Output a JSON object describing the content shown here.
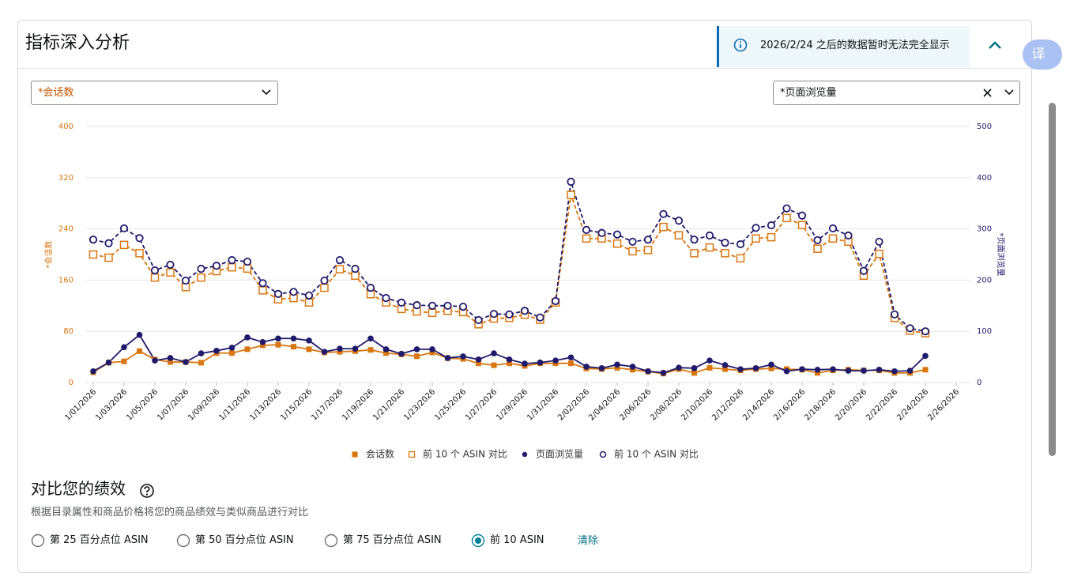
{
  "header": {
    "title": "指标深入分析"
  },
  "notice": {
    "text": "2026/2/24 之后的数据暂时无法完全显示"
  },
  "translate_button": {
    "label": "译"
  },
  "dropdowns": [
    {
      "label": "*会话数"
    },
    {
      "label": "*页面浏览量"
    }
  ],
  "chart_data": {
    "type": "line",
    "categories": [
      "1/01/2026",
      null,
      "1/03/2026",
      null,
      "1/05/2026",
      null,
      "1/07/2026",
      null,
      "1/09/2026",
      null,
      "1/11/2026",
      null,
      "1/13/2026",
      null,
      "1/15/2026",
      null,
      "1/17/2026",
      null,
      "1/19/2026",
      null,
      "1/21/2026",
      null,
      "1/23/2026",
      null,
      "1/25/2026",
      null,
      "1/27/2026",
      null,
      "1/29/2026",
      null,
      "1/31/2026",
      null,
      "2/02/2026",
      null,
      "2/04/2026",
      null,
      "2/06/2026",
      null,
      "2/08/2026",
      null,
      "2/10/2026",
      null,
      "2/12/2026",
      null,
      "2/14/2026",
      null,
      "2/16/2026",
      null,
      "2/18/2026",
      null,
      "2/20/2026",
      null,
      "2/22/2026",
      null,
      "2/24/2026",
      null,
      "2/26/2026"
    ],
    "ylabel": "*会话数",
    "y2label": "*页面浏览量",
    "ylim": [
      0,
      400
    ],
    "yticks": [
      0,
      80,
      160,
      240,
      320,
      400
    ],
    "y2lim": [
      0,
      500
    ],
    "y2ticks": [
      0,
      100,
      200,
      300,
      400,
      500
    ],
    "grid": true,
    "legend": "bottom",
    "series": [
      {
        "name": "会话数",
        "color": "#d9760f",
        "axis": "y",
        "marker": "square",
        "filled": true,
        "dashed": false,
        "values": [
          16,
          31,
          33,
          49,
          36,
          32,
          32,
          31,
          46,
          46,
          52,
          58,
          59,
          56,
          52,
          47,
          48,
          49,
          51,
          46,
          44,
          41,
          47,
          38,
          37,
          30,
          27,
          30,
          26,
          30,
          30,
          30,
          22,
          21,
          23,
          20,
          17,
          14,
          21,
          15,
          23,
          21,
          19,
          21,
          22,
          21,
          20,
          15,
          19,
          20,
          19,
          19,
          15,
          15,
          20,
          null,
          null
        ]
      },
      {
        "name": "前 10 个 ASIN 对比",
        "color": "#d9760f",
        "axis": "y",
        "marker": "square",
        "filled": false,
        "dashed": true,
        "values": [
          200,
          195,
          215,
          202,
          164,
          172,
          149,
          164,
          174,
          180,
          178,
          144,
          130,
          132,
          125,
          148,
          177,
          167,
          138,
          125,
          115,
          111,
          109,
          112,
          110,
          91,
          100,
          101,
          106,
          98,
          125,
          293,
          225,
          225,
          217,
          205,
          207,
          243,
          230,
          202,
          211,
          202,
          194,
          225,
          227,
          257,
          246,
          209,
          225,
          220,
          167,
          201,
          101,
          81,
          77,
          null,
          null
        ]
      },
      {
        "name": "页面浏览量",
        "color": "#1f1a6b",
        "axis": "y2",
        "marker": "circle",
        "filled": true,
        "dashed": false,
        "values": [
          22,
          39,
          69,
          93,
          43,
          48,
          40,
          57,
          62,
          68,
          88,
          79,
          86,
          86,
          82,
          60,
          66,
          66,
          86,
          65,
          56,
          65,
          65,
          48,
          51,
          45,
          57,
          45,
          37,
          39,
          43,
          49,
          31,
          28,
          35,
          31,
          22,
          19,
          29,
          28,
          43,
          34,
          26,
          28,
          35,
          22,
          26,
          25,
          26,
          23,
          23,
          25,
          22,
          23,
          52,
          null,
          null
        ]
      },
      {
        "name": "前 10 个 ASIN 对比",
        "color": "#1f1a6b",
        "axis": "y2",
        "marker": "circle",
        "filled": false,
        "dashed": true,
        "values": [
          279,
          272,
          301,
          282,
          219,
          230,
          199,
          222,
          228,
          239,
          236,
          194,
          173,
          177,
          170,
          199,
          239,
          222,
          185,
          165,
          156,
          151,
          150,
          150,
          148,
          122,
          134,
          133,
          140,
          127,
          159,
          392,
          298,
          292,
          289,
          275,
          279,
          329,
          316,
          279,
          287,
          273,
          270,
          302,
          307,
          340,
          326,
          278,
          301,
          287,
          218,
          275,
          133,
          106,
          100,
          null,
          null
        ]
      }
    ]
  },
  "compare": {
    "title": "对比您的绩效",
    "subtitle": "根据目录属性和商品价格将您的商品绩效与类似商品进行对比",
    "options": [
      "第 25 百分点位 ASIN",
      "第 50 百分点位 ASIN",
      "第 75 百分点位 ASIN",
      "前 10 ASIN"
    ],
    "selected": 3,
    "clear": "清除"
  }
}
